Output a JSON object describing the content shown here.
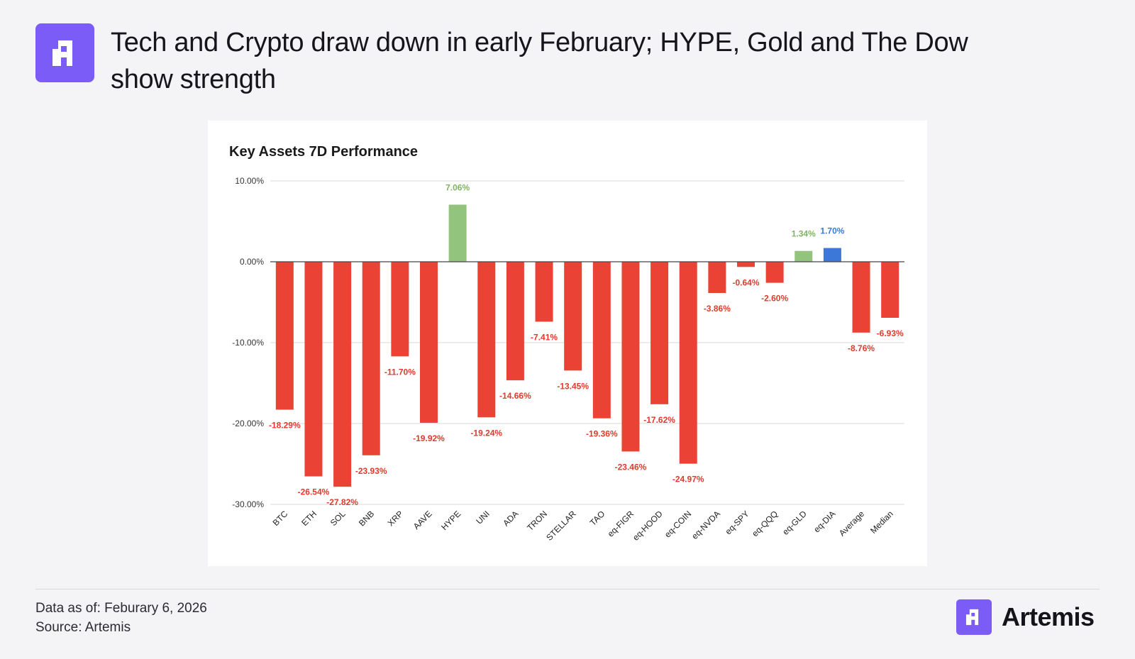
{
  "header": {
    "title": "Tech and Crypto draw down in early February; HYPE, Gold and The Dow show strength",
    "logo_icon": "artemis-logo-icon"
  },
  "footer": {
    "data_as_of": "Data as of: Feburary 6, 2026",
    "source": "Source: Artemis",
    "brand_name": "Artemis"
  },
  "colors": {
    "negative": "#ea4335",
    "positive_green": "#93c47d",
    "highlight_blue": "#3c78d8",
    "neg_label": "#e03a2c",
    "pos_label": "#7fb464",
    "brand": "#7c5cf6"
  },
  "chart_data": {
    "type": "bar",
    "title": "Key Assets 7D Performance",
    "xlabel": "",
    "ylabel": "",
    "ylim": [
      -30,
      10
    ],
    "yticks": [
      10,
      0,
      -10,
      -20,
      -30
    ],
    "ytick_labels": [
      "10.00%",
      "0.00%",
      "-10.00%",
      "-20.00%",
      "-30.00%"
    ],
    "grid": true,
    "categories": [
      "BTC",
      "ETH",
      "SOL",
      "BNB",
      "XRP",
      "AAVE",
      "HYPE",
      "UNI",
      "ADA",
      "TRON",
      "STELLAR",
      "TAO",
      "eq-FIGR",
      "eq-HOOD",
      "eq-COIN",
      "eq-NVDA",
      "eq-SPY",
      "eq-QQQ",
      "eq-GLD",
      "eq-DIA",
      "Average",
      "Median"
    ],
    "values": [
      -18.29,
      -26.54,
      -27.82,
      -23.93,
      -11.7,
      -19.92,
      7.06,
      -19.24,
      -14.66,
      -7.41,
      -13.45,
      -19.36,
      -23.46,
      -17.62,
      -24.97,
      -3.86,
      -0.64,
      -2.6,
      1.34,
      1.7,
      -8.76,
      -6.93
    ],
    "data_labels": [
      "-18.29%",
      "-26.54%",
      "-27.82%",
      "-23.93%",
      "-11.70%",
      "-19.92%",
      "7.06%",
      "-19.24%",
      "-14.66%",
      "-7.41%",
      "-13.45%",
      "-19.36%",
      "-23.46%",
      "-17.62%",
      "-24.97%",
      "-3.86%",
      "-0.64%",
      "-2.60%",
      "1.34%",
      "1.70%",
      "-8.76%",
      "-6.93%"
    ],
    "bar_colors": [
      "#ea4335",
      "#ea4335",
      "#ea4335",
      "#ea4335",
      "#ea4335",
      "#ea4335",
      "#93c47d",
      "#ea4335",
      "#ea4335",
      "#ea4335",
      "#ea4335",
      "#ea4335",
      "#ea4335",
      "#ea4335",
      "#ea4335",
      "#ea4335",
      "#ea4335",
      "#ea4335",
      "#93c47d",
      "#3c78d8",
      "#ea4335",
      "#ea4335"
    ],
    "label_colors": [
      "#e03a2c",
      "#e03a2c",
      "#e03a2c",
      "#e03a2c",
      "#e03a2c",
      "#e03a2c",
      "#7fb464",
      "#e03a2c",
      "#e03a2c",
      "#e03a2c",
      "#e03a2c",
      "#e03a2c",
      "#e03a2c",
      "#e03a2c",
      "#e03a2c",
      "#e03a2c",
      "#e03a2c",
      "#e03a2c",
      "#7fb464",
      "#3c78d8",
      "#e03a2c",
      "#e03a2c"
    ]
  }
}
